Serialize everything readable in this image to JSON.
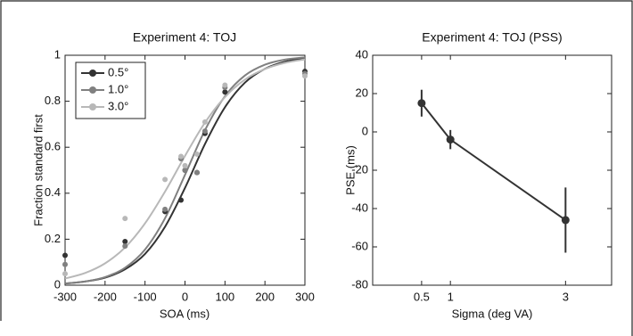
{
  "chart_data": [
    {
      "type": "scatter",
      "title": "Experiment 4: TOJ",
      "xlabel": "SOA (ms)",
      "ylabel": "Fraction standard first",
      "x": [
        -300,
        -150,
        -50,
        -10,
        0,
        30,
        50,
        100,
        300
      ],
      "fit_x": [
        -300,
        -250,
        -200,
        -150,
        -100,
        -50,
        0,
        50,
        100,
        150,
        200,
        250,
        300
      ],
      "series": [
        {
          "name": "0.5°",
          "color": "#333333",
          "values": [
            0.13,
            0.19,
            0.32,
            0.37,
            0.5,
            0.49,
            0.66,
            0.84,
            0.93
          ],
          "fit_values": [
            0.007,
            0.016,
            0.033,
            0.069,
            0.136,
            0.254,
            0.423,
            0.614,
            0.774,
            0.881,
            0.941,
            0.972,
            0.987
          ]
        },
        {
          "name": "1.0°",
          "color": "#808080",
          "values": [
            0.09,
            0.17,
            0.33,
            0.55,
            0.5,
            0.49,
            0.67,
            0.86,
            0.92
          ],
          "fit_values": [
            0.007,
            0.016,
            0.035,
            0.076,
            0.155,
            0.291,
            0.48,
            0.674,
            0.822,
            0.912,
            0.959,
            0.981,
            0.991
          ]
        },
        {
          "name": "3.0°",
          "color": "#b8b8b8",
          "values": [
            0.05,
            0.29,
            0.46,
            0.56,
            0.52,
            0.57,
            0.71,
            0.87,
            0.91
          ],
          "fit_values": [
            0.029,
            0.053,
            0.095,
            0.164,
            0.269,
            0.407,
            0.562,
            0.707,
            0.818,
            0.894,
            0.94,
            0.967,
            0.982
          ]
        }
      ],
      "xlim": [
        -300,
        300
      ],
      "xticks": [
        -300,
        -200,
        -100,
        0,
        100,
        200,
        300
      ],
      "ylim": [
        0,
        1
      ],
      "yticks": [
        0,
        0.2,
        0.4,
        0.6,
        0.8,
        1
      ],
      "legend": "upper left"
    },
    {
      "type": "line",
      "title": "Experiment 4: TOJ (PSS)",
      "xlabel": "Sigma (deg VA)",
      "ylabel": "PSE (ms)",
      "x": [
        0.5,
        1,
        3
      ],
      "series": [
        {
          "color": "#333333",
          "values": [
            15,
            -4,
            -46
          ],
          "errors": [
            7,
            5,
            17
          ]
        }
      ],
      "xlim": [
        -0.35,
        3.8
      ],
      "xticks": [
        0.5,
        1,
        3
      ],
      "ylim": [
        -80,
        40
      ],
      "yticks": [
        -80,
        -60,
        -40,
        -20,
        0,
        20,
        40
      ]
    }
  ]
}
